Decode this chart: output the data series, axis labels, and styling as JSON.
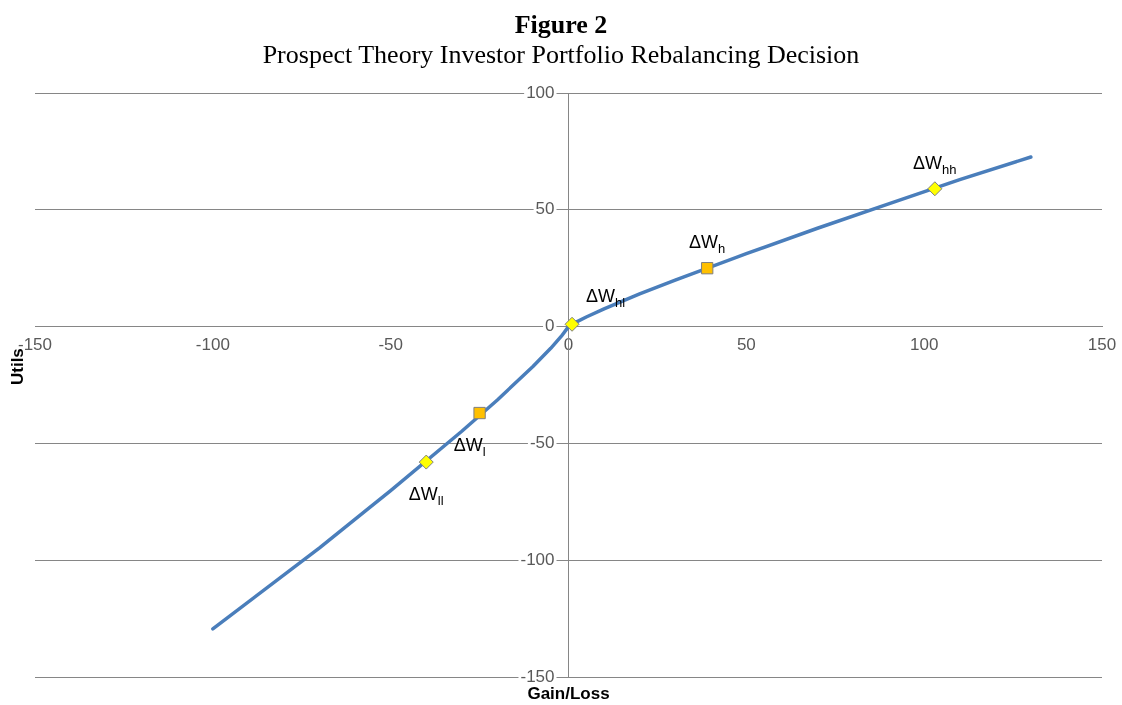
{
  "chart_data": {
    "type": "line",
    "title": "Figure 2",
    "subtitle": "Prospect Theory Investor Portfolio Rebalancing Decision",
    "xlabel": "Gain/Loss",
    "ylabel": "Utils",
    "xlim": [
      -150,
      150
    ],
    "xticks": [
      -150,
      -100,
      -50,
      0,
      50,
      100,
      150
    ],
    "ylim": [
      -150,
      100
    ],
    "yticks": [
      -150,
      -100,
      -50,
      0,
      50,
      100
    ],
    "grid": "y",
    "legend": false,
    "series": [
      {
        "type": "line",
        "color": "#4a7ebb",
        "marker": "none",
        "x": [
          -100,
          -70,
          -50,
          -30,
          -20,
          -10,
          -5,
          -2,
          0,
          2,
          5,
          10,
          20,
          30,
          50,
          70,
          90,
          110,
          130
        ],
        "values": [
          -129.4,
          -94.7,
          -70.2,
          -44.8,
          -31.4,
          -17.1,
          -9.3,
          -4.1,
          0,
          1.8,
          4.1,
          7.6,
          14,
          19.9,
          31.2,
          42.1,
          52.5,
          62.9,
          72.6
        ]
      },
      {
        "type": "scatter",
        "color": "#ffff00",
        "marker": "diamond",
        "x": [
          1,
          103,
          -40
        ],
        "values": [
          1,
          59,
          -58
        ]
      },
      {
        "type": "scatter",
        "color": "#ffc000",
        "marker": "square",
        "x": [
          39,
          -25
        ],
        "values": [
          25,
          -37
        ]
      }
    ],
    "annotations": [
      {
        "text": "ΔW$_{hl}$",
        "x": 1,
        "y": 1
      },
      {
        "text": "ΔW$_{h}$",
        "x": 39,
        "y": 25
      },
      {
        "text": "ΔW$_{hh}$",
        "x": 103,
        "y": 59
      },
      {
        "text": "ΔW$_{l}$",
        "x": -25,
        "y": -37
      },
      {
        "text": "ΔW$_{ll}$",
        "x": -40,
        "y": -58
      }
    ]
  }
}
